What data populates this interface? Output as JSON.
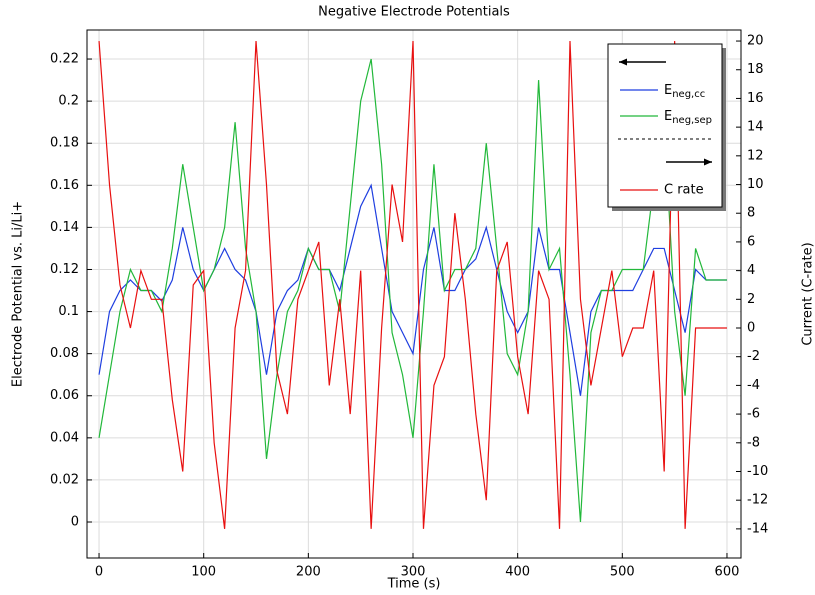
{
  "chart_data": {
    "type": "line",
    "title": "Negative Electrode Potentials",
    "x_label": "Time (s)",
    "y_label": "Electrode Potential vs. Li/Li+",
    "y2_label": "Current (C-rate)",
    "x": [
      0,
      10,
      20,
      30,
      40,
      50,
      60,
      70,
      80,
      90,
      100,
      110,
      120,
      130,
      140,
      150,
      160,
      170,
      180,
      190,
      200,
      210,
      220,
      230,
      240,
      250,
      260,
      270,
      280,
      290,
      300,
      310,
      320,
      330,
      340,
      350,
      360,
      370,
      380,
      390,
      400,
      410,
      420,
      430,
      440,
      450,
      460,
      470,
      480,
      490,
      500,
      510,
      520,
      530,
      540,
      550,
      560,
      570,
      580,
      590,
      600
    ],
    "xlim": [
      -11.5,
      613.4
    ],
    "xticks": [
      0,
      100,
      200,
      300,
      400,
      500,
      600
    ],
    "ylim": [
      -0.0171,
      0.2338
    ],
    "yticks": [
      0,
      0.02,
      0.04,
      0.06,
      0.08,
      0.1,
      0.12,
      0.14,
      0.16,
      0.18,
      0.2,
      0.22
    ],
    "y2lim": [
      -16.03,
      20.77
    ],
    "y2ticks": [
      -14,
      -12,
      -10,
      -8,
      -6,
      -4,
      -2,
      0,
      2,
      4,
      6,
      8,
      10,
      12,
      14,
      16,
      18,
      20
    ],
    "grid": true,
    "legend": "upper right",
    "series": [
      {
        "name": "Eneg,cc",
        "color": "#1f3fe0",
        "values": [
          0.07,
          0.1,
          0.11,
          0.115,
          0.11,
          0.11,
          0.105,
          0.115,
          0.14,
          0.12,
          0.11,
          0.12,
          0.13,
          0.12,
          0.115,
          0.1,
          0.07,
          0.1,
          0.11,
          0.115,
          0.13,
          0.12,
          0.12,
          0.11,
          0.13,
          0.15,
          0.16,
          0.13,
          0.1,
          0.09,
          0.08,
          0.12,
          0.14,
          0.11,
          0.11,
          0.12,
          0.125,
          0.14,
          0.12,
          0.1,
          0.09,
          0.1,
          0.14,
          0.12,
          0.12,
          0.09,
          0.06,
          0.1,
          0.11,
          0.11,
          0.11,
          0.11,
          0.12,
          0.13,
          0.13,
          0.11,
          0.09,
          0.12,
          0.115,
          0.115,
          0.115
        ]
      },
      {
        "name": "Eneg,sep",
        "color": "#22b83a",
        "values": [
          0.04,
          0.07,
          0.1,
          0.12,
          0.11,
          0.11,
          0.1,
          0.13,
          0.17,
          0.14,
          0.11,
          0.12,
          0.14,
          0.19,
          0.13,
          0.1,
          0.03,
          0.07,
          0.1,
          0.11,
          0.13,
          0.12,
          0.12,
          0.1,
          0.15,
          0.2,
          0.22,
          0.17,
          0.09,
          0.07,
          0.04,
          0.1,
          0.17,
          0.11,
          0.12,
          0.12,
          0.13,
          0.18,
          0.13,
          0.08,
          0.07,
          0.1,
          0.21,
          0.12,
          0.13,
          0.07,
          0,
          0.09,
          0.11,
          0.11,
          0.12,
          0.12,
          0.12,
          0.16,
          0.19,
          0.1,
          0.06,
          0.13,
          0.115,
          0.115,
          0.115
        ]
      },
      {
        "name": "C rate",
        "color": "#e81010",
        "axis": "y2",
        "values": [
          20,
          10,
          3,
          0,
          4,
          2,
          2,
          -5,
          -10,
          3,
          4,
          -8,
          -14,
          0,
          4,
          20,
          10,
          -3,
          -6,
          2,
          4,
          6,
          -4,
          2,
          -6,
          4,
          -14,
          0,
          10,
          6,
          20,
          -14,
          -4,
          -2,
          8,
          2,
          -6,
          -12,
          4,
          6,
          -2,
          -6,
          4,
          2,
          -14,
          20,
          2,
          -4,
          0,
          4,
          -2,
          0,
          0,
          4,
          -10,
          20,
          -14,
          0,
          0,
          0,
          0
        ]
      }
    ]
  }
}
